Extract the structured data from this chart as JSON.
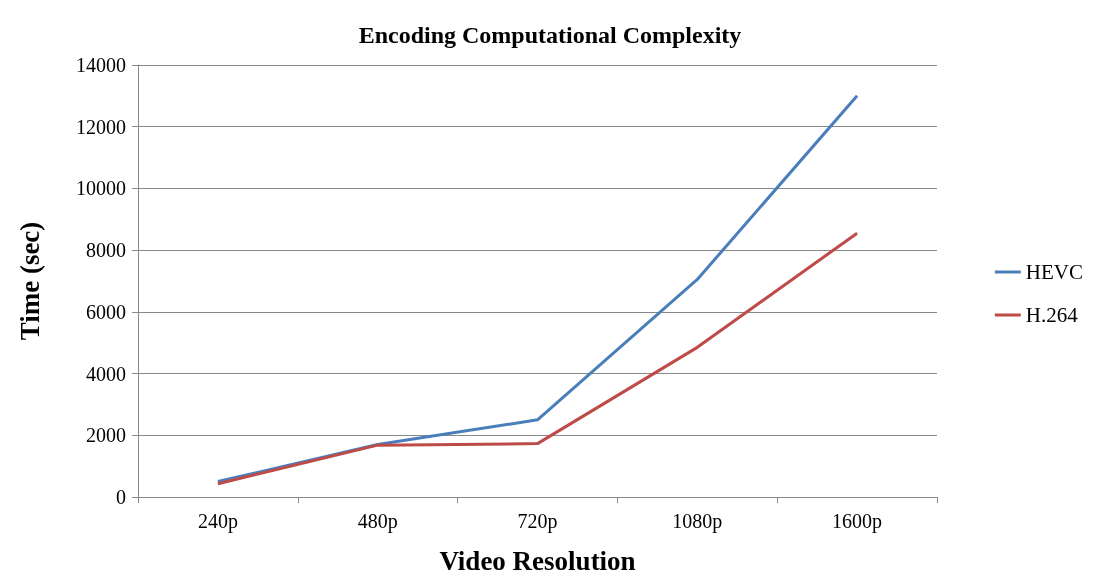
{
  "chart_data": {
    "type": "line",
    "title": "Encoding Computational Complexity",
    "xlabel": "Video Resolution",
    "ylabel": "Time (sec)",
    "categories": [
      "240p",
      "480p",
      "720p",
      "1080p",
      "1600p"
    ],
    "series": [
      {
        "name": "HEVC",
        "color": "#4a7ebb",
        "values": [
          500,
          1700,
          2500,
          7050,
          13000
        ]
      },
      {
        "name": "H.264",
        "color": "#be4b48",
        "values": [
          430,
          1680,
          1730,
          4850,
          8550
        ]
      }
    ],
    "ylim": [
      0,
      14000
    ],
    "yticks": [
      0,
      2000,
      4000,
      6000,
      8000,
      10000,
      12000,
      14000
    ],
    "grid": "y",
    "legend": "right",
    "marker": "none",
    "line_style": "solid"
  }
}
